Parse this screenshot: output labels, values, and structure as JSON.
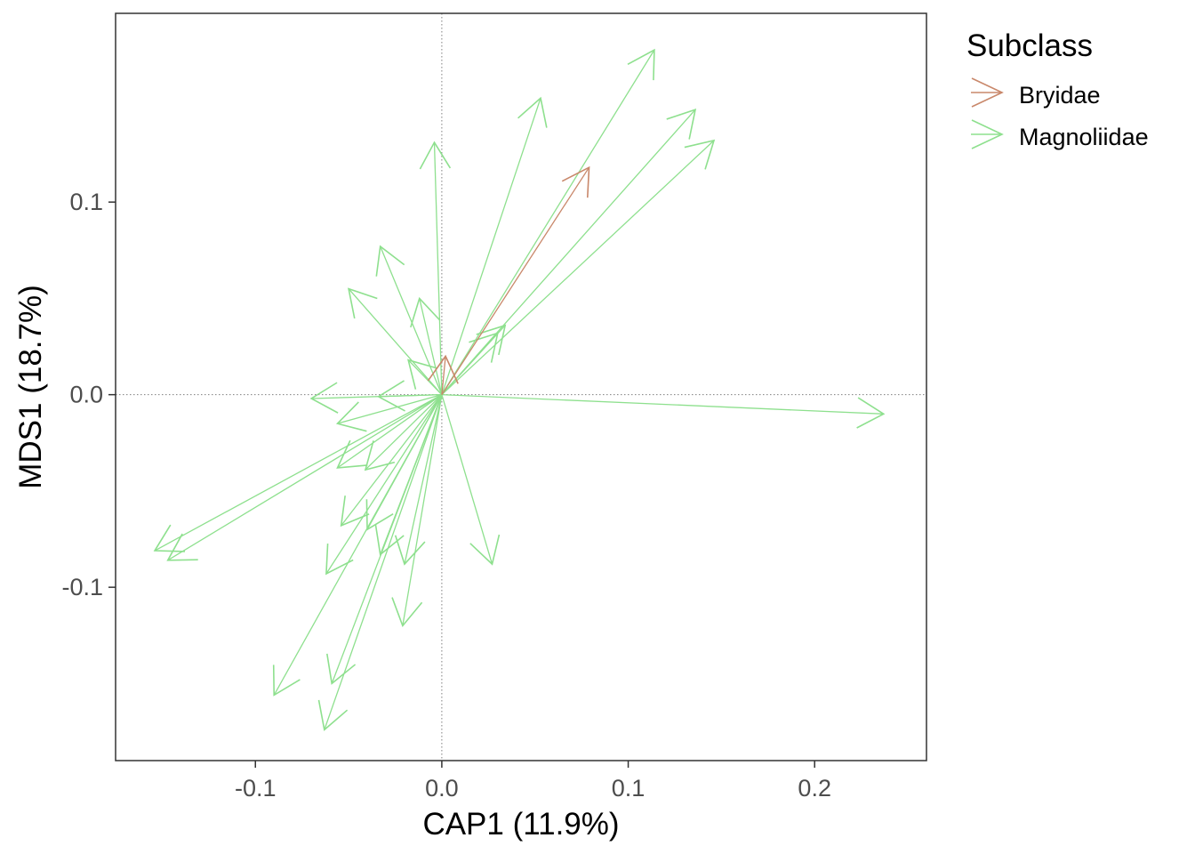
{
  "chart_data": {
    "type": "scatter",
    "title": "",
    "xlabel": "CAP1 (11.9%)",
    "ylabel": "MDS1 (18.7%)",
    "xlim": [
      -0.175,
      0.26
    ],
    "ylim": [
      -0.19,
      0.198
    ],
    "xticks": [
      {
        "value": -0.1,
        "label": "-0.1"
      },
      {
        "value": 0.0,
        "label": "0.0"
      },
      {
        "value": 0.1,
        "label": "0.1"
      },
      {
        "value": 0.2,
        "label": "0.2"
      }
    ],
    "yticks": [
      {
        "value": 0.1,
        "label": "0.1"
      },
      {
        "value": 0.0,
        "label": "0.0"
      },
      {
        "value": -0.1,
        "label": "-0.1"
      }
    ],
    "grid": false,
    "reference_lines": {
      "x": 0,
      "y": 0,
      "style": "dotted"
    },
    "legend": {
      "title": "Subclass",
      "position": "right",
      "entries": [
        {
          "label": "Bryidae",
          "color": "#C9886B"
        },
        {
          "label": "Magnoliidae",
          "color": "#8EE08E"
        }
      ]
    },
    "series": [
      {
        "name": "Magnoliidae",
        "color": "#8EE08E",
        "arrows": [
          {
            "x": 0.114,
            "y": 0.179
          },
          {
            "x": 0.053,
            "y": 0.154
          },
          {
            "x": 0.136,
            "y": 0.148
          },
          {
            "x": 0.146,
            "y": 0.132
          },
          {
            "x": -0.004,
            "y": 0.131
          },
          {
            "x": -0.033,
            "y": 0.077
          },
          {
            "x": -0.05,
            "y": 0.055
          },
          {
            "x": -0.012,
            "y": 0.05
          },
          {
            "x": 0.034,
            "y": 0.036
          },
          {
            "x": 0.03,
            "y": 0.032
          },
          {
            "x": -0.018,
            "y": 0.018
          },
          {
            "x": 0.237,
            "y": -0.01
          },
          {
            "x": -0.07,
            "y": -0.002
          },
          {
            "x": -0.034,
            "y": -0.001
          },
          {
            "x": -0.056,
            "y": -0.015
          },
          {
            "x": -0.154,
            "y": -0.081
          },
          {
            "x": -0.147,
            "y": -0.086
          },
          {
            "x": -0.056,
            "y": -0.038
          },
          {
            "x": -0.041,
            "y": -0.039
          },
          {
            "x": -0.054,
            "y": -0.068
          },
          {
            "x": -0.04,
            "y": -0.07
          },
          {
            "x": -0.062,
            "y": -0.093
          },
          {
            "x": -0.033,
            "y": -0.083
          },
          {
            "x": -0.02,
            "y": -0.088
          },
          {
            "x": 0.027,
            "y": -0.088
          },
          {
            "x": -0.021,
            "y": -0.12
          },
          {
            "x": -0.09,
            "y": -0.156
          },
          {
            "x": -0.059,
            "y": -0.15
          },
          {
            "x": -0.063,
            "y": -0.174
          }
        ]
      },
      {
        "name": "Bryidae",
        "color": "#C9886B",
        "arrows": [
          {
            "x": 0.079,
            "y": 0.118
          },
          {
            "x": 0.002,
            "y": 0.02
          }
        ]
      }
    ]
  }
}
